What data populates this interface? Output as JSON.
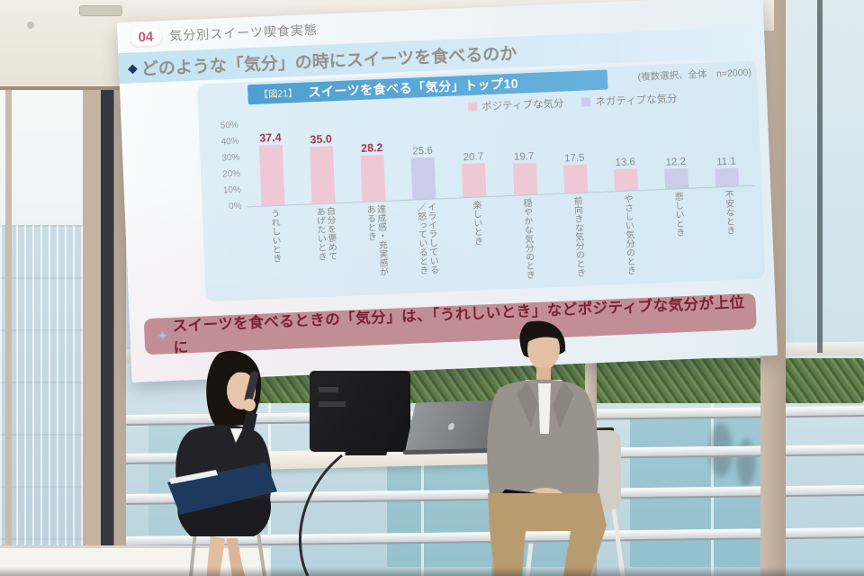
{
  "slide": {
    "section_number": "04",
    "section_title": "気分別スイーツ喫食実態",
    "headline_marker": "◆",
    "headline": "どのような「気分」の時にスイーツを食べるのか",
    "figure_tag": "【図21】",
    "chart_title": "スイーツを食べる「気分」トップ10",
    "sample_note": "(複数選択、全体　n=2000)",
    "legend": [
      {
        "label": "ポジティブな気分",
        "color": "#eec9d5"
      },
      {
        "label": "ネガティブな気分",
        "color": "#c9cdea"
      }
    ],
    "takeaway_marker": "✦",
    "takeaway": "スイーツを食べるときの「気分」は、「うれしいとき」などポジティブな気分が上位に"
  },
  "chart_data": {
    "type": "bar",
    "title": "スイーツを食べる「気分」トップ10",
    "categories": [
      "うれしいとき",
      "自分を褒めてあげたいとき",
      "達成感・充実感があるとき",
      "イライラしている／怒っているとき",
      "楽しいとき",
      "穏やかな気分のとき",
      "前向きな気分のとき",
      "やさしい気分のとき",
      "悲しいとき",
      "不安なとき"
    ],
    "values": [
      37.4,
      35.0,
      28.2,
      25.6,
      20.7,
      19.7,
      17.5,
      13.6,
      12.2,
      11.1
    ],
    "bars": [
      {
        "label": "うれしいとき",
        "value": 37.4,
        "mood": "positive",
        "emphasized": true
      },
      {
        "label": "自分を褒めて\nあげたいとき",
        "value": 35.0,
        "mood": "positive",
        "emphasized": true
      },
      {
        "label": "達成感・充実感が\nあるとき",
        "value": 28.2,
        "mood": "positive",
        "emphasized": true
      },
      {
        "label": "イライラしている\n／怒っているとき",
        "value": 25.6,
        "mood": "negative",
        "emphasized": false
      },
      {
        "label": "楽しいとき",
        "value": 20.7,
        "mood": "positive",
        "emphasized": false
      },
      {
        "label": "穏やかな気分のとき",
        "value": 19.7,
        "mood": "positive",
        "emphasized": false
      },
      {
        "label": "前向きな気分のとき",
        "value": 17.5,
        "mood": "positive",
        "emphasized": false
      },
      {
        "label": "やさしい気分のとき",
        "value": 13.6,
        "mood": "positive",
        "emphasized": false
      },
      {
        "label": "悲しいとき",
        "value": 12.2,
        "mood": "negative",
        "emphasized": false
      },
      {
        "label": "不安なとき",
        "value": 11.1,
        "mood": "negative",
        "emphasized": false
      }
    ],
    "yticks": [
      "50%",
      "40%",
      "30%",
      "20%",
      "10%",
      "0%"
    ],
    "ylim": [
      0,
      50
    ],
    "grid": false,
    "legend_position": "top-right",
    "colors": {
      "positive": "#eec9d5",
      "negative": "#c9cdea",
      "emphasized_value": "#a23c52",
      "value": "#8d8d91",
      "title_bar": "#4e9fd3"
    }
  }
}
